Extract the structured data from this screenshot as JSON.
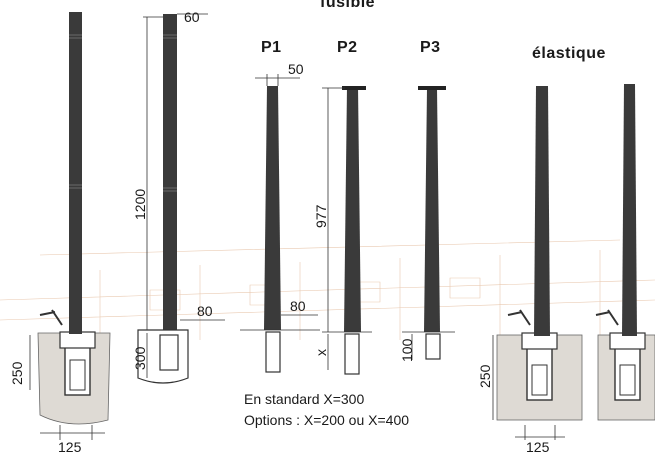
{
  "titles": {
    "fusible": "fusible",
    "elastique": "élastique",
    "p1": "P1",
    "p2": "P2",
    "p3": "P3"
  },
  "dimensions": {
    "top_diameter": "60",
    "tip_diameter_p1": "50",
    "height_total": "1200",
    "height_p2": "977",
    "base_diameter_a": "80",
    "base_diameter_b": "80",
    "depth_300": "300",
    "depth_x": "x",
    "depth_100": "100",
    "footing_left_height": "250",
    "footing_left_width": "125",
    "footing_right_height": "250",
    "footing_right_width": "125"
  },
  "notes": {
    "line1": "En standard X=300",
    "line2": "Options : X=200 ou X=400"
  },
  "colors": {
    "post": "#3a3a3a",
    "ground": "#dedad4",
    "background_sketch": "#e9c9b0"
  }
}
